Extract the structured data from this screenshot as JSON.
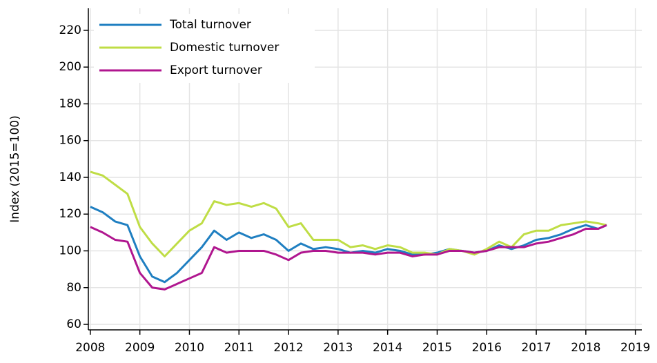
{
  "chart_data": {
    "type": "line",
    "y_label": "Index (2015=100)",
    "x": [
      2008,
      2008.25,
      2008.5,
      2008.75,
      2009,
      2009.25,
      2009.5,
      2009.75,
      2010,
      2010.25,
      2010.5,
      2010.75,
      2011,
      2011.25,
      2011.5,
      2011.75,
      2012,
      2012.25,
      2012.5,
      2012.75,
      2013,
      2013.25,
      2013.5,
      2013.75,
      2014,
      2014.25,
      2014.5,
      2014.75,
      2015,
      2015.25,
      2015.5,
      2015.75,
      2016,
      2016.25,
      2016.5,
      2016.75,
      2017,
      2017.25,
      2017.5,
      2017.75,
      2018,
      2018.25,
      2018.42
    ],
    "series": [
      {
        "name": "Total turnover",
        "color": "#1f7fc1",
        "values": [
          124,
          121,
          116,
          114,
          97,
          86,
          83,
          88,
          95,
          102,
          111,
          106,
          110,
          107,
          109,
          106,
          100,
          104,
          101,
          102,
          101,
          99,
          100,
          99,
          101,
          100,
          98,
          98,
          99,
          101,
          100,
          99,
          100,
          103,
          101,
          103,
          106,
          107,
          109,
          112,
          114,
          112,
          114
        ]
      },
      {
        "name": "Domestic turnover",
        "color": "#bfdd45",
        "values": [
          143,
          141,
          136,
          131,
          113,
          104,
          97,
          104,
          111,
          115,
          127,
          125,
          126,
          124,
          126,
          123,
          113,
          115,
          106,
          106,
          106,
          102,
          103,
          101,
          103,
          102,
          99,
          99,
          98,
          101,
          100,
          98,
          101,
          105,
          102,
          109,
          111,
          111,
          114,
          115,
          116,
          115,
          114
        ]
      },
      {
        "name": "Export turnover",
        "color": "#b0168f",
        "values": [
          113,
          110,
          106,
          105,
          88,
          80,
          79,
          82,
          85,
          88,
          102,
          99,
          100,
          100,
          100,
          98,
          95,
          99,
          100,
          100,
          99,
          99,
          99,
          98,
          99,
          99,
          97,
          98,
          98,
          100,
          100,
          99,
          100,
          102,
          102,
          102,
          104,
          105,
          107,
          109,
          112,
          112,
          114
        ]
      }
    ],
    "xlim": [
      2007.96,
      2019.13
    ],
    "xticks": [
      2008,
      2009,
      2010,
      2011,
      2012,
      2013,
      2014,
      2015,
      2016,
      2017,
      2018,
      2019
    ],
    "ylim": [
      57,
      232
    ],
    "yticks": [
      60,
      80,
      100,
      120,
      140,
      160,
      180,
      200,
      220
    ],
    "grid": true,
    "legend": "top-left"
  }
}
